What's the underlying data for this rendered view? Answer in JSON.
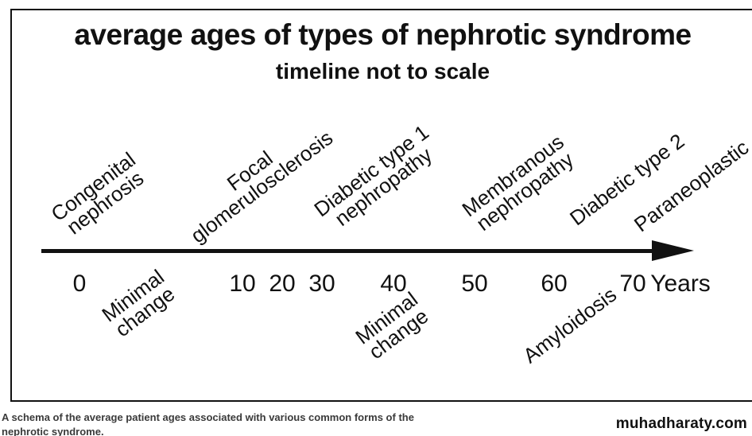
{
  "title": "average ages of types of nephrotic syndrome",
  "subtitle": "timeline not to scale",
  "colors": {
    "ink": "#111111",
    "background": "#ffffff",
    "caption_text": "#3a3a3a"
  },
  "timeline": {
    "axis_unit": "Years",
    "ticks": [
      "0",
      "10",
      "20",
      "30",
      "40",
      "50",
      "60",
      "70"
    ],
    "labels_above": [
      {
        "line1": "Congenital",
        "line2": "nephrosis",
        "approx_age_years": 0
      },
      {
        "line1": "Focal",
        "line2": "glomerulosclerosis",
        "approx_age_years": 22
      },
      {
        "line1": "Diabetic type 1",
        "line2": "nephropathy",
        "approx_age_years": 40
      },
      {
        "line1": "Membranous",
        "line2": "nephropathy",
        "approx_age_years": 55
      },
      {
        "line1": "Diabetic type 2",
        "line2": "",
        "approx_age_years": 65
      },
      {
        "line1": "Paraneoplastic",
        "line2": "",
        "approx_age_years": 73
      }
    ],
    "labels_below": [
      {
        "line1": "Minimal",
        "line2": "change",
        "approx_age_years": 6
      },
      {
        "line1": "Minimal",
        "line2": "change",
        "approx_age_years": 44
      },
      {
        "line1": "Amyloidosis",
        "line2": "",
        "approx_age_years": 67
      }
    ]
  },
  "caption": {
    "line1": "A schema of the average patient ages associated with various common forms of the",
    "line2": "nephrotic syndrome."
  },
  "brand": "muhadharaty.com",
  "chart_data": {
    "type": "timeline",
    "title": "average ages of types of nephrotic syndrome",
    "subtitle": "timeline not to scale",
    "axis_label": "Years",
    "axis_ticks": [
      0,
      10,
      20,
      30,
      40,
      50,
      60,
      70
    ],
    "note": "timeline not to scale",
    "entries": [
      {
        "label": "Congenital nephrosis",
        "approx_age_years": 0,
        "side": "above"
      },
      {
        "label": "Minimal change",
        "approx_age_years": 6,
        "side": "below"
      },
      {
        "label": "Focal glomerulosclerosis",
        "approx_age_years": 22,
        "side": "above"
      },
      {
        "label": "Diabetic type 1 nephropathy",
        "approx_age_years": 40,
        "side": "above"
      },
      {
        "label": "Minimal change",
        "approx_age_years": 44,
        "side": "below"
      },
      {
        "label": "Membranous nephropathy",
        "approx_age_years": 55,
        "side": "above"
      },
      {
        "label": "Diabetic type 2",
        "approx_age_years": 65,
        "side": "above"
      },
      {
        "label": "Amyloidosis",
        "approx_age_years": 67,
        "side": "below"
      },
      {
        "label": "Paraneoplastic",
        "approx_age_years": 73,
        "side": "above"
      }
    ]
  }
}
